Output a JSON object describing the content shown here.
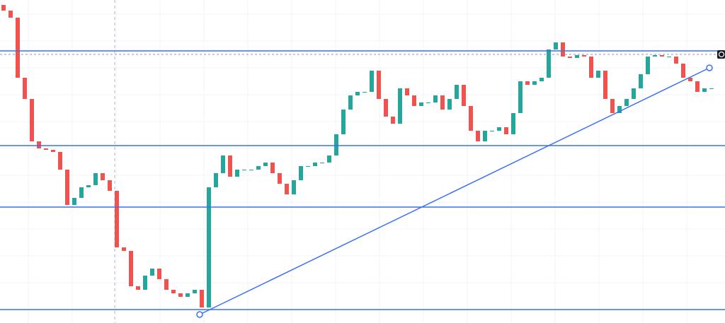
{
  "chart_data": {
    "type": "candlestick",
    "xlim": [
      -0.5,
      101.9
    ],
    "ylim": [
      0,
      457
    ],
    "up_color": "#26a69a",
    "down_color": "#ef5350",
    "line_color": "#3a6ff7",
    "open": [
      450,
      442,
      432,
      347,
      317,
      257,
      247,
      245,
      242,
      217,
      167,
      177,
      192,
      195,
      212,
      202,
      187,
      107,
      102,
      52,
      47,
      67,
      77,
      62,
      47,
      42,
      37,
      42,
      47,
      22,
      192,
      212,
      237,
      207,
      217,
      217,
      217,
      222,
      227,
      212,
      197,
      182,
      202,
      222,
      222,
      227,
      227,
      237,
      267,
      302,
      322,
      327,
      327,
      357,
      317,
      292,
      282,
      332,
      322,
      307,
      312,
      312,
      322,
      302,
      317,
      337,
      307,
      272,
      257,
      272,
      272,
      277,
      267,
      297,
      342,
      337,
      342,
      347,
      387,
      397,
      377,
      375,
      379,
      377,
      347,
      357,
      317,
      297,
      307,
      317,
      332,
      352,
      377,
      379,
      377,
      377,
      367,
      347,
      342,
      327,
      332
    ],
    "close": [
      442,
      432,
      347,
      317,
      257,
      247,
      245,
      242,
      217,
      167,
      177,
      192,
      195,
      212,
      202,
      187,
      107,
      102,
      52,
      47,
      67,
      77,
      62,
      47,
      42,
      37,
      42,
      47,
      22,
      192,
      212,
      237,
      207,
      217,
      217,
      217,
      222,
      227,
      212,
      197,
      182,
      202,
      222,
      222,
      227,
      227,
      237,
      267,
      302,
      322,
      327,
      327,
      357,
      317,
      292,
      282,
      332,
      322,
      307,
      312,
      312,
      322,
      302,
      317,
      337,
      307,
      272,
      257,
      272,
      272,
      277,
      267,
      297,
      342,
      337,
      342,
      347,
      387,
      397,
      377,
      375,
      379,
      377,
      347,
      357,
      317,
      297,
      307,
      317,
      332,
      352,
      377,
      379,
      377,
      377,
      367,
      347,
      342,
      327,
      332,
      332
    ],
    "hlines": [
      385,
      251,
      164,
      19
    ],
    "price_line": 380,
    "cursor_x": 15.7,
    "trendline": {
      "x": [
        27.7,
        99.7
      ],
      "y": [
        12,
        361
      ]
    }
  }
}
